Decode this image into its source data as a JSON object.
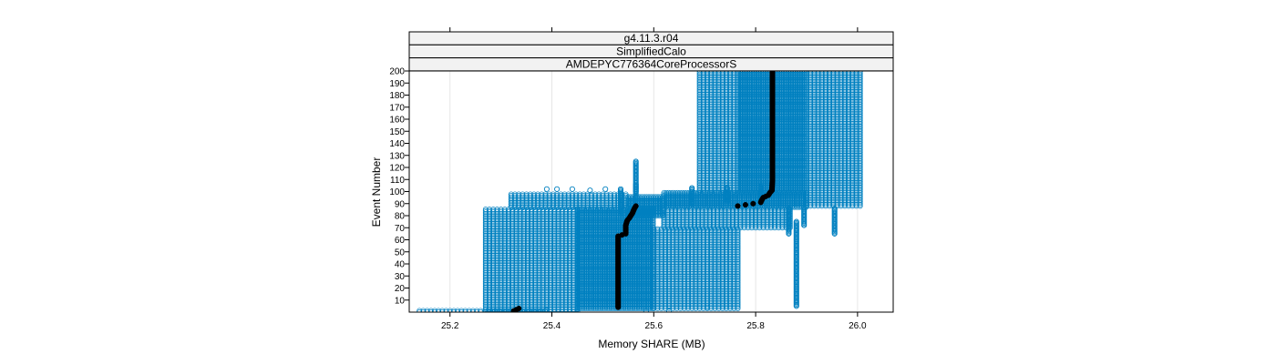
{
  "chart_data": {
    "type": "scatter",
    "strips": [
      "g4.11.3.r04",
      "SimplifiedCalo",
      "AMDEPYC776364CoreProcessorS"
    ],
    "xlabel": "Memory SHARE (MB)",
    "ylabel": "Event Number",
    "xlim": [
      25.12,
      26.07
    ],
    "ylim": [
      0,
      200
    ],
    "x_ticks": [
      25.2,
      25.4,
      25.6,
      25.8,
      26.0
    ],
    "x_tick_labels": [
      "25.2",
      "25.4",
      "25.6",
      "25.8",
      "26.0"
    ],
    "y_ticks": [
      10,
      20,
      30,
      40,
      50,
      60,
      70,
      80,
      90,
      100,
      110,
      120,
      130,
      140,
      150,
      160,
      170,
      180,
      190,
      200
    ],
    "y_tick_labels": [
      "10",
      "20",
      "30",
      "40",
      "50",
      "60",
      "70",
      "80",
      "90",
      "100",
      "110",
      "120",
      "130",
      "140",
      "150",
      "160",
      "170",
      "180",
      "190",
      "200"
    ],
    "grid": true,
    "colors": {
      "series": "#0080c0",
      "highlight": "#000000",
      "strip_bg": "#f2f2f2"
    },
    "series": [
      {
        "role": "all-runs",
        "blocks": [
          {
            "x_from": 25.14,
            "x_to": 25.26,
            "y_from": 0,
            "y_to": 2,
            "density": "sparse"
          },
          {
            "x_from": 25.27,
            "x_to": 25.39,
            "y_from": 0,
            "y_to": 2,
            "density": "dense"
          },
          {
            "x_from": 25.27,
            "x_to": 25.45,
            "y_from": 0,
            "y_to": 86,
            "density": "sparse"
          },
          {
            "x_from": 25.32,
            "x_to": 25.55,
            "y_from": 87,
            "y_to": 98,
            "density": "sparse"
          },
          {
            "x_from": 25.45,
            "x_to": 25.6,
            "y_from": 3,
            "y_to": 86,
            "density": "dense"
          },
          {
            "x_from": 25.55,
            "x_to": 25.62,
            "y_from": 80,
            "y_to": 96,
            "density": "dense"
          },
          {
            "x_from": 25.6,
            "x_to": 25.77,
            "y_from": 3,
            "y_to": 70,
            "density": "sparse"
          },
          {
            "x_from": 25.62,
            "x_to": 25.87,
            "y_from": 70,
            "y_to": 86,
            "density": "sparse"
          },
          {
            "x_from": 25.62,
            "x_to": 25.9,
            "y_from": 87,
            "y_to": 99,
            "density": "dense"
          },
          {
            "x_from": 25.69,
            "x_to": 25.77,
            "y_from": 100,
            "y_to": 200,
            "density": "sparse"
          },
          {
            "x_from": 25.77,
            "x_to": 25.9,
            "y_from": 100,
            "y_to": 200,
            "density": "dense"
          },
          {
            "x_from": 25.9,
            "x_to": 26.01,
            "y_from": 88,
            "y_to": 200,
            "density": "sparse"
          }
        ],
        "columns": [
          {
            "x": 25.535,
            "y_from": 81,
            "y_to": 102
          },
          {
            "x": 25.565,
            "y_from": 92,
            "y_to": 106
          },
          {
            "x": 25.675,
            "y_from": 90,
            "y_to": 103
          },
          {
            "x": 25.744,
            "y_from": 92,
            "y_to": 103
          },
          {
            "x": 25.81,
            "y_from": 95,
            "y_to": 104
          },
          {
            "x": 25.88,
            "y_from": 5,
            "y_to": 75
          },
          {
            "x": 25.865,
            "y_from": 65,
            "y_to": 86
          },
          {
            "x": 25.895,
            "y_from": 72,
            "y_to": 87
          },
          {
            "x": 25.955,
            "y_from": 65,
            "y_to": 86
          },
          {
            "x": 25.565,
            "y_from": 100,
            "y_to": 125
          }
        ],
        "isolated_points": [
          {
            "x": 25.39,
            "y": 102
          },
          {
            "x": 25.41,
            "y": 102
          },
          {
            "x": 25.44,
            "y": 102
          },
          {
            "x": 25.475,
            "y": 101
          },
          {
            "x": 25.505,
            "y": 102
          },
          {
            "x": 25.705,
            "y": 4
          },
          {
            "x": 25.585,
            "y": 1
          },
          {
            "x": 25.63,
            "y": 1
          },
          {
            "x": 25.39,
            "y": 2
          }
        ]
      },
      {
        "role": "selected-run",
        "points": [
          [
            25.325,
            1
          ],
          [
            25.33,
            2
          ],
          [
            25.335,
            3
          ],
          [
            25.53,
            4
          ],
          [
            25.53,
            10
          ],
          [
            25.53,
            20
          ],
          [
            25.53,
            30
          ],
          [
            25.53,
            40
          ],
          [
            25.53,
            50
          ],
          [
            25.53,
            60
          ],
          [
            25.53,
            63
          ],
          [
            25.545,
            65
          ],
          [
            25.545,
            68
          ],
          [
            25.545,
            72
          ],
          [
            25.548,
            76
          ],
          [
            25.552,
            78
          ],
          [
            25.555,
            80
          ],
          [
            25.558,
            82
          ],
          [
            25.56,
            84
          ],
          [
            25.562,
            86
          ],
          [
            25.565,
            88
          ],
          [
            25.765,
            88
          ],
          [
            25.81,
            91
          ],
          [
            25.812,
            93
          ],
          [
            25.815,
            95
          ],
          [
            25.82,
            96
          ],
          [
            25.825,
            97
          ],
          [
            25.828,
            99
          ],
          [
            25.832,
            101
          ],
          [
            25.833,
            110
          ],
          [
            25.833,
            120
          ],
          [
            25.833,
            130
          ],
          [
            25.833,
            140
          ],
          [
            25.833,
            150
          ],
          [
            25.833,
            160
          ],
          [
            25.833,
            170
          ],
          [
            25.833,
            180
          ],
          [
            25.833,
            190
          ],
          [
            25.833,
            200
          ]
        ]
      }
    ]
  }
}
